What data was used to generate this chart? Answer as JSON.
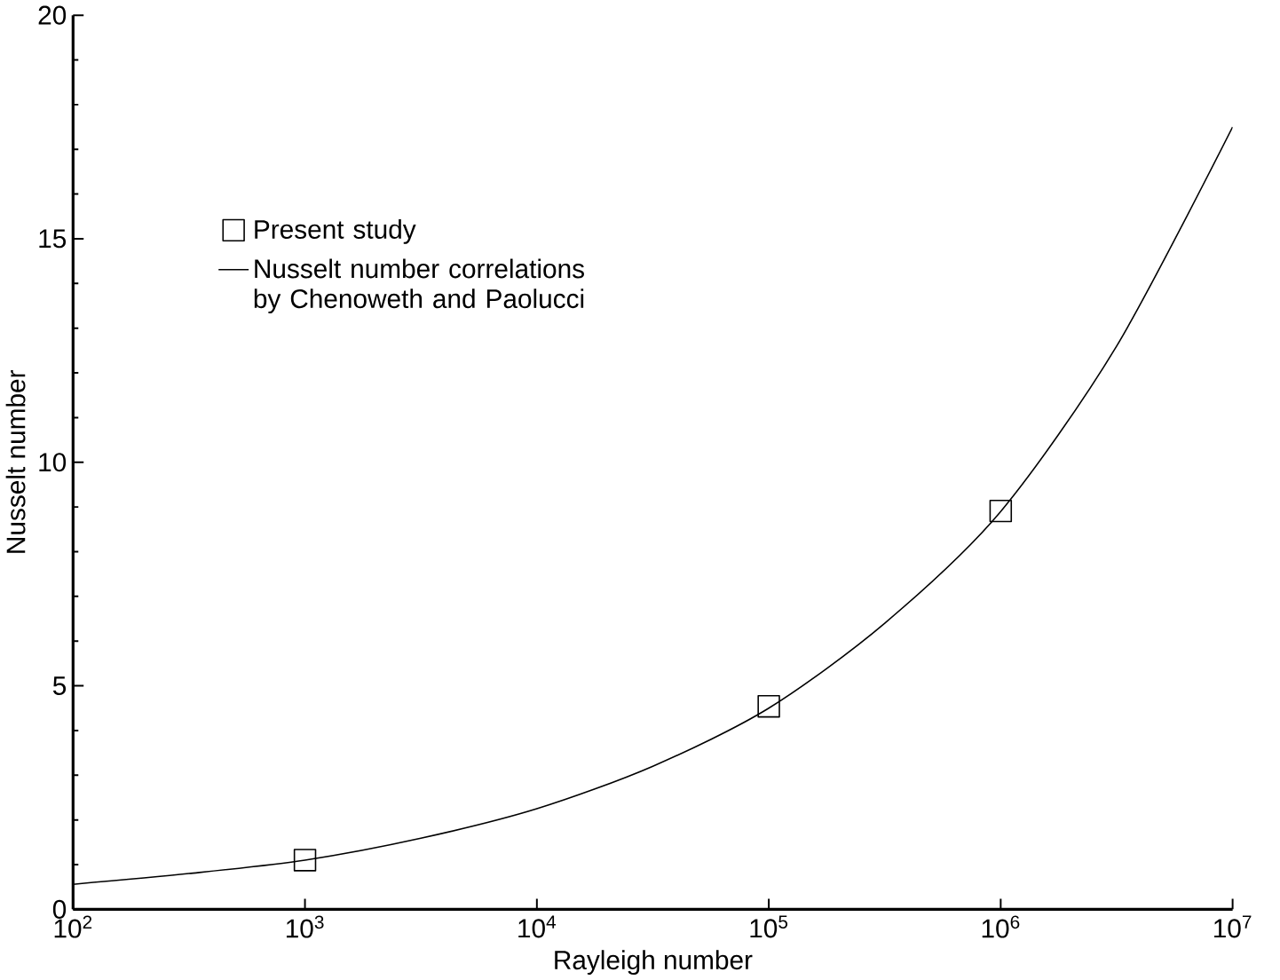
{
  "chart_data": {
    "type": "scatter",
    "xlabel": "Rayleigh number",
    "ylabel": "Nusselt number",
    "log": "x",
    "xlim": [
      100,
      10000000
    ],
    "ylim": [
      0,
      20
    ],
    "xticks": [
      {
        "value": 100,
        "label": "10$^{2}$"
      },
      {
        "value": 1000,
        "label": "10$^{3}$"
      },
      {
        "value": 10000,
        "label": "10$^{4}$"
      },
      {
        "value": 100000,
        "label": "10$^{5}$"
      },
      {
        "value": 1000000,
        "label": "10$^{6}$"
      },
      {
        "value": 10000000,
        "label": "10$^{7}$"
      }
    ],
    "yticks": [
      0,
      5,
      10,
      15,
      20
    ],
    "legend": "top left",
    "grid": false,
    "series": [
      {
        "name": "Present study",
        "marker": "square",
        "color": "#000000",
        "x": [
          1000,
          100000,
          1000000
        ],
        "values": [
          1.1,
          4.54,
          8.91
        ]
      },
      {
        "name": "Nusselt number correlations by Chenoweth and Paolucci",
        "type": "line",
        "marker": "none",
        "line_style": "solid",
        "color": "#000000",
        "x": [
          100,
          316,
          1000,
          3162,
          10000,
          31623,
          100000,
          316228,
          1000000,
          3162278,
          10000000
        ],
        "values": [
          0.56,
          0.8,
          1.1,
          1.59,
          2.25,
          3.2,
          4.5,
          6.4,
          8.9,
          12.6,
          17.5
        ]
      }
    ]
  }
}
